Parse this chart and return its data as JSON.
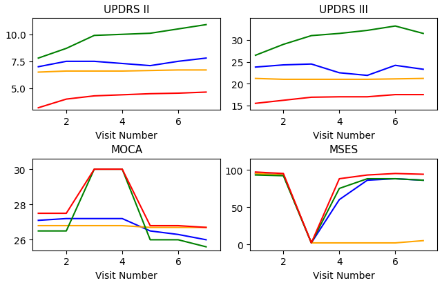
{
  "titles": [
    "UPDRS II",
    "UPDRS III",
    "MOCA",
    "MSES"
  ],
  "xlabel": "Visit Number",
  "color_order": [
    "blue",
    "orange",
    "green",
    "red"
  ],
  "x": [
    1,
    2,
    3,
    4,
    5,
    6,
    7
  ],
  "updrs2": {
    "blue": [
      7.0,
      7.5,
      7.5,
      7.3,
      7.1,
      7.5,
      7.8
    ],
    "orange": [
      6.5,
      6.6,
      6.6,
      6.6,
      6.65,
      6.7,
      6.7
    ],
    "green": [
      7.8,
      8.7,
      9.9,
      10.0,
      10.1,
      10.5,
      10.9
    ],
    "red": [
      3.2,
      4.0,
      4.3,
      4.4,
      4.5,
      4.55,
      4.65
    ]
  },
  "updrs3": {
    "blue": [
      23.8,
      24.3,
      24.5,
      22.5,
      21.9,
      24.2,
      23.3
    ],
    "orange": [
      21.2,
      21.0,
      21.0,
      21.0,
      21.0,
      21.1,
      21.2
    ],
    "green": [
      26.5,
      29.0,
      31.0,
      31.5,
      32.2,
      33.2,
      31.5
    ],
    "red": [
      15.5,
      16.2,
      16.9,
      17.0,
      17.0,
      17.5,
      17.5
    ]
  },
  "moca": {
    "blue": [
      27.1,
      27.2,
      27.2,
      27.2,
      26.5,
      26.3,
      26.0
    ],
    "orange": [
      26.8,
      26.8,
      26.8,
      26.8,
      26.7,
      26.7,
      26.7
    ],
    "green": [
      26.5,
      26.5,
      30.0,
      30.0,
      26.0,
      26.0,
      25.6
    ],
    "red": [
      27.5,
      27.5,
      30.0,
      30.0,
      26.8,
      26.8,
      26.7
    ]
  },
  "mses": {
    "blue": [
      95.0,
      93.0,
      2.0,
      60.0,
      86.0,
      88.0,
      86.0
    ],
    "orange": [
      95.0,
      93.0,
      2.0,
      2.0,
      2.0,
      2.0,
      5.0
    ],
    "green": [
      93.0,
      92.0,
      2.0,
      75.0,
      88.0,
      88.0,
      86.0
    ],
    "red": [
      97.0,
      95.0,
      2.0,
      88.0,
      93.0,
      95.0,
      94.0
    ]
  },
  "updrs2_ylim": [
    3.0,
    11.5
  ],
  "updrs2_yticks": [
    5.0,
    7.5,
    10.0
  ],
  "updrs3_ylim": [
    14,
    35
  ],
  "updrs3_yticks": [
    15,
    20,
    25,
    30
  ],
  "moca_ylim": [
    25.4,
    30.6
  ],
  "moca_yticks": [
    26,
    28,
    30
  ],
  "mses_ylim": [
    -8,
    115
  ],
  "mses_yticks": [
    0,
    50,
    100
  ],
  "xticks": [
    2,
    4,
    6
  ],
  "xlim": [
    0.8,
    7.5
  ]
}
